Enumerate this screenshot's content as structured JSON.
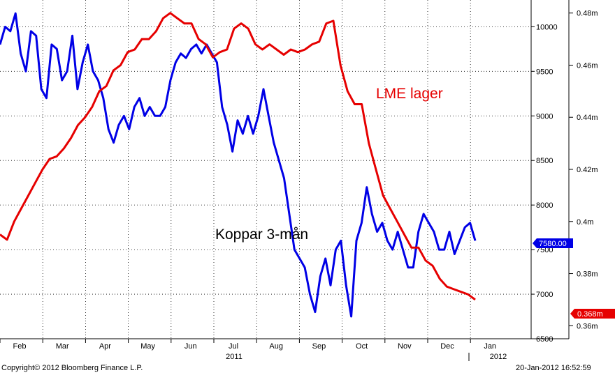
{
  "chart_data": {
    "type": "line",
    "x_labels": [
      "Feb",
      "Mar",
      "Apr",
      "May",
      "Jun",
      "Jul",
      "Aug",
      "Sep",
      "Oct",
      "Nov",
      "Dec",
      "Jan"
    ],
    "year_labels": [
      "2011",
      "2012"
    ],
    "left_axis": {
      "min": 6500,
      "max": 10300,
      "ticks": [
        "10000",
        "9500",
        "9000",
        "8500",
        "8000",
        "7500",
        "7000",
        "6500"
      ]
    },
    "right_axis": {
      "min": 0.355,
      "max": 0.485,
      "ticks": [
        "0.48m",
        "0.46m",
        "0.44m",
        "0.42m",
        "0.4m",
        "0.38m",
        "0.36m"
      ]
    },
    "grid": true,
    "series": [
      {
        "name": "Koppar 3-mån",
        "axis": "left",
        "color": "#0000e6",
        "values": [
          9800,
          10000,
          9950,
          10150,
          9700,
          9500,
          9950,
          9900,
          9300,
          9200,
          9800,
          9750,
          9400,
          9500,
          9900,
          9300,
          9600,
          9800,
          9500,
          9400,
          9200,
          8850,
          8700,
          8900,
          9000,
          8850,
          9100,
          9200,
          9000,
          9100,
          9000,
          9000,
          9100,
          9400,
          9600,
          9700,
          9650,
          9750,
          9800,
          9700,
          9800,
          9700,
          9600,
          9100,
          8900,
          8600,
          8950,
          8800,
          9000,
          8800,
          9000,
          9300,
          9000,
          8700,
          8500,
          8300,
          7900,
          7500,
          7400,
          7300,
          7000,
          6800,
          7200,
          7400,
          7100,
          7500,
          7600,
          7100,
          6750,
          7600,
          7800,
          8200,
          7900,
          7700,
          7800,
          7600,
          7500,
          7700,
          7500,
          7300,
          7300,
          7700,
          7900,
          7800,
          7700,
          7500,
          7500,
          7700,
          7450,
          7600,
          7750,
          7800,
          7600
        ],
        "last_label": "7580.00"
      },
      {
        "name": "LME lager",
        "axis": "right",
        "color": "#e60000",
        "values": [
          0.395,
          0.393,
          0.4,
          0.405,
          0.41,
          0.415,
          0.42,
          0.424,
          0.425,
          0.428,
          0.432,
          0.437,
          0.44,
          0.444,
          0.45,
          0.452,
          0.458,
          0.46,
          0.465,
          0.466,
          0.47,
          0.47,
          0.473,
          0.478,
          0.48,
          0.478,
          0.476,
          0.476,
          0.47,
          0.468,
          0.463,
          0.465,
          0.466,
          0.474,
          0.476,
          0.474,
          0.468,
          0.466,
          0.468,
          0.466,
          0.464,
          0.466,
          0.465,
          0.466,
          0.468,
          0.469,
          0.476,
          0.477,
          0.46,
          0.45,
          0.445,
          0.445,
          0.43,
          0.42,
          0.41,
          0.405,
          0.4,
          0.395,
          0.39,
          0.39,
          0.385,
          0.383,
          0.378,
          0.375,
          0.374,
          0.373,
          0.372,
          0.37
        ],
        "last_label": "0.368m"
      }
    ],
    "annotations": [
      "LME lager",
      "Koppar 3-mån"
    ]
  },
  "footer": {
    "copyright": "Copyright© 2012 Bloomberg Finance L.P.",
    "timestamp": "20-Jan-2012 16:52:59"
  }
}
